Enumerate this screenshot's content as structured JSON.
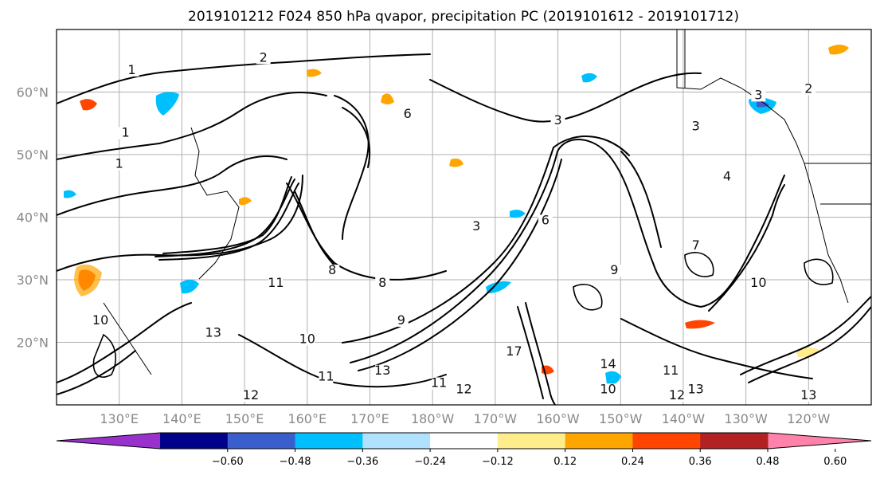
{
  "chart_data": {
    "type": "heatmap",
    "title": "2019101212 F024 850 hPa qvapor, precipitation PC (2019101612 - 2019101712)",
    "projection": "PlateCarree",
    "extent": {
      "lon_min": 120,
      "lon_max": 250,
      "lat_min": 10,
      "lat_max": 70
    },
    "lat_ticks": [
      {
        "lat": 60,
        "label": "60°N"
      },
      {
        "lat": 50,
        "label": "50°N"
      },
      {
        "lat": 40,
        "label": "40°N"
      },
      {
        "lat": 30,
        "label": "30°N"
      },
      {
        "lat": 20,
        "label": "20°N"
      }
    ],
    "lon_ticks": [
      {
        "lon": 130,
        "label": "130°E"
      },
      {
        "lon": 140,
        "label": "140°E"
      },
      {
        "lon": 150,
        "label": "150°E"
      },
      {
        "lon": 160,
        "label": "160°E"
      },
      {
        "lon": 170,
        "label": "170°E"
      },
      {
        "lon": 180,
        "label": "180°W"
      },
      {
        "lon": 190,
        "label": "170°W"
      },
      {
        "lon": 200,
        "label": "160°W"
      },
      {
        "lon": 210,
        "label": "150°W"
      },
      {
        "lon": 220,
        "label": "140°W"
      },
      {
        "lon": 230,
        "label": "130°W"
      },
      {
        "lon": 240,
        "label": "120°W"
      }
    ],
    "grid": true,
    "contour_labels": [
      {
        "text": "2",
        "lon": 153,
        "lat": 65
      },
      {
        "text": "1",
        "lon": 132,
        "lat": 63
      },
      {
        "text": "1",
        "lon": 131,
        "lat": 53
      },
      {
        "text": "1",
        "lon": 130,
        "lat": 48
      },
      {
        "text": "2",
        "lon": 240,
        "lat": 60
      },
      {
        "text": "3",
        "lon": 232,
        "lat": 59
      },
      {
        "text": "3",
        "lon": 200,
        "lat": 55
      },
      {
        "text": "3",
        "lon": 222,
        "lat": 54
      },
      {
        "text": "4",
        "lon": 227,
        "lat": 46
      },
      {
        "text": "6",
        "lon": 176,
        "lat": 56
      },
      {
        "text": "3",
        "lon": 187,
        "lat": 38
      },
      {
        "text": "6",
        "lon": 198,
        "lat": 39
      },
      {
        "text": "9",
        "lon": 209,
        "lat": 31
      },
      {
        "text": "7",
        "lon": 222,
        "lat": 35
      },
      {
        "text": "10",
        "lon": 232,
        "lat": 29
      },
      {
        "text": "8",
        "lon": 172,
        "lat": 29
      },
      {
        "text": "9",
        "lon": 175,
        "lat": 23
      },
      {
        "text": "10",
        "lon": 160,
        "lat": 20
      },
      {
        "text": "13",
        "lon": 145,
        "lat": 21
      },
      {
        "text": "10",
        "lon": 127,
        "lat": 23
      },
      {
        "text": "11",
        "lon": 155,
        "lat": 29
      },
      {
        "text": "13",
        "lon": 172,
        "lat": 15
      },
      {
        "text": "11",
        "lon": 181,
        "lat": 13
      },
      {
        "text": "12",
        "lon": 185,
        "lat": 12
      },
      {
        "text": "17",
        "lon": 193,
        "lat": 18
      },
      {
        "text": "14",
        "lon": 208,
        "lat": 16
      },
      {
        "text": "10",
        "lon": 208,
        "lat": 12
      },
      {
        "text": "11",
        "lon": 218,
        "lat": 15
      },
      {
        "text": "12",
        "lon": 219,
        "lat": 11
      },
      {
        "text": "13",
        "lon": 222,
        "lat": 12
      },
      {
        "text": "13",
        "lon": 240,
        "lat": 11
      },
      {
        "text": "12",
        "lon": 151,
        "lat": 11
      },
      {
        "text": "11",
        "lon": 163,
        "lat": 14
      },
      {
        "text": "8",
        "lon": 164,
        "lat": 31
      }
    ],
    "colorbar": {
      "extend": "both",
      "tick_labels": [
        "−0.60",
        "−0.48",
        "−0.36",
        "−0.24",
        "−0.12",
        "0.12",
        "0.24",
        "0.36",
        "0.48",
        "0.60"
      ],
      "colors": [
        "#9932cc",
        "#00008b",
        "#3a5fcd",
        "#00bfff",
        "#b0e2ff",
        "#ffffff",
        "#ffec8b",
        "#ffa500",
        "#ff4500",
        "#b22222",
        "#ff82ab"
      ]
    }
  }
}
